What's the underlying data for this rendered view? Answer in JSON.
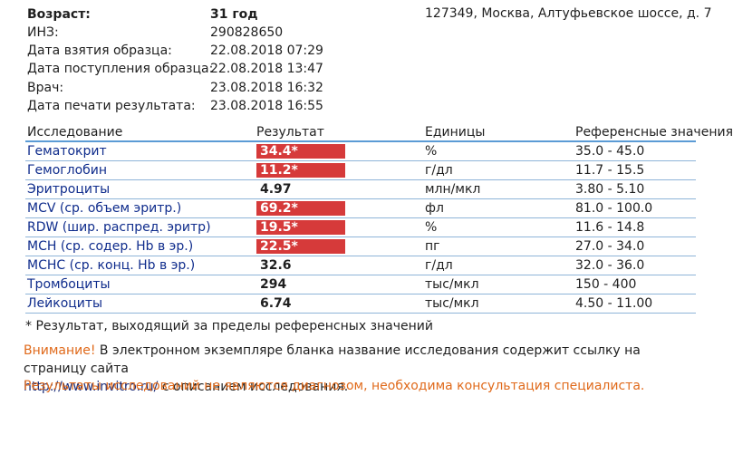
{
  "patient": {
    "age_label": "Возраст:",
    "age_value": "31 год",
    "inz_label": "ИНЗ:",
    "inz_value": "290828650",
    "sample_taken_label": "Дата взятия образца:",
    "sample_taken_value": "22.08.2018 07:29",
    "sample_received_label": "Дата поступления образца:",
    "sample_received_value": "22.08.2018 13:47",
    "doctor_label": "Врач:",
    "doctor_value": "23.08.2018 16:32",
    "print_date_label": "Дата печати результата:",
    "print_date_value": "23.08.2018 16:55"
  },
  "address": "127349, Москва, Алтуфьевское шоссе, д. 7",
  "table": {
    "headers": [
      "Исследование",
      "Результат",
      "Единицы",
      "Референсные значения"
    ],
    "rows": [
      {
        "name": "Гематокрит",
        "result": "34.4*",
        "flagged": true,
        "units": "%",
        "reference": "35.0 - 45.0"
      },
      {
        "name": "Гемоглобин",
        "result": "11.2*",
        "flagged": true,
        "units": "г/дл",
        "reference": "11.7 - 15.5"
      },
      {
        "name": "Эритроциты",
        "result": "4.97",
        "flagged": false,
        "units": "млн/мкл",
        "reference": "3.80 - 5.10"
      },
      {
        "name": "MCV (ср. объем эритр.)",
        "result": "69.2*",
        "flagged": true,
        "units": "фл",
        "reference": "81.0 - 100.0"
      },
      {
        "name": "RDW (шир. распред. эритр)",
        "result": "19.5*",
        "flagged": true,
        "units": "%",
        "reference": "11.6 - 14.8"
      },
      {
        "name": "MCH (ср. содер. Hb в эр.)",
        "result": "22.5*",
        "flagged": true,
        "units": "пг",
        "reference": "27.0 - 34.0"
      },
      {
        "name": "MCHC (ср. конц. Hb в эр.)",
        "result": "32.6",
        "flagged": false,
        "units": "г/дл",
        "reference": "32.0 - 36.0"
      },
      {
        "name": "Тромбоциты",
        "result": "294",
        "flagged": false,
        "units": "тыс/мкл",
        "reference": "150 - 400"
      },
      {
        "name": "Лейкоциты",
        "result": "6.74",
        "flagged": false,
        "units": "тыс/мкл",
        "reference": "4.50 - 11.00"
      }
    ]
  },
  "note": "* Результат, выходящий за пределы референсных значений",
  "warning": {
    "word": "Внимание!",
    "text_1": " В электронном экземпляре бланка название исследования содержит ссылку на страницу сайта",
    "link": "http://www.invitro.ru/",
    "text_2": " с описанием исследования."
  },
  "disclaimer": "Результаты исследований не являются диагнозом, необходима консультация специалиста.",
  "colors": {
    "flag_red": "#d63a3a",
    "warning_orange": "#e06a1b",
    "link_blue": "#1b2c78",
    "table_line": "#8eb4d8"
  }
}
